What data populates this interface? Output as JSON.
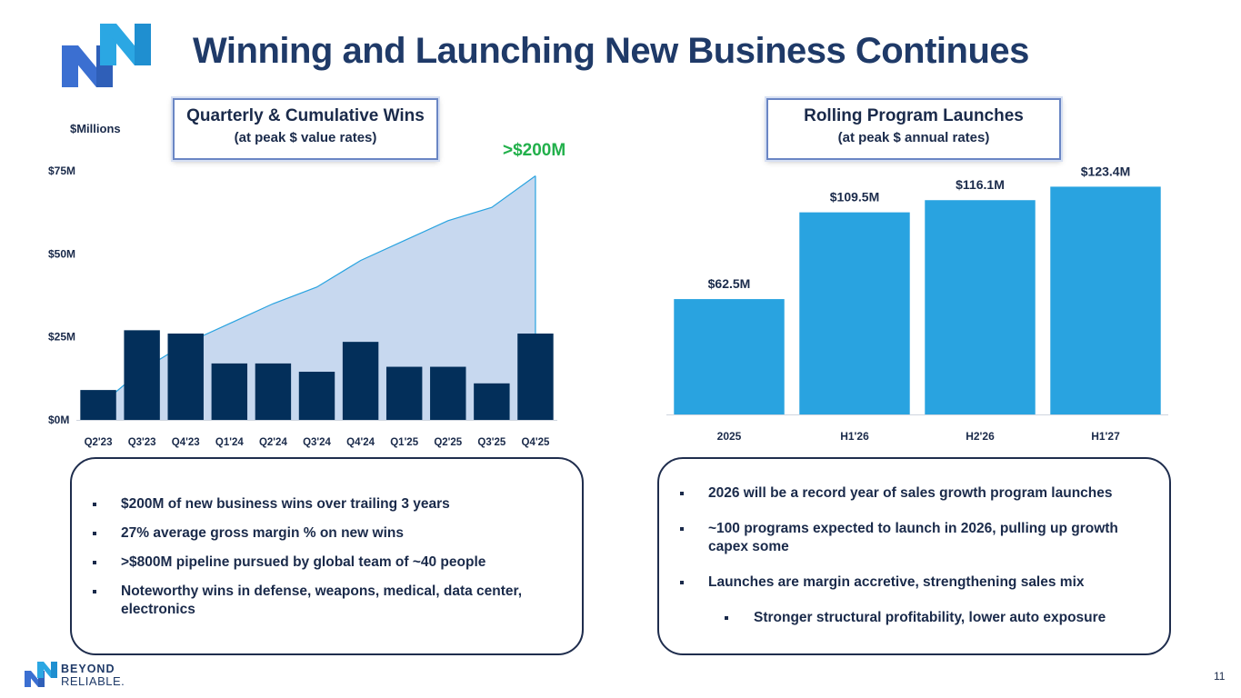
{
  "slide": {
    "title": "Winning and Launching New Business Continues",
    "page_number": "11"
  },
  "footer": {
    "brand_line1": "BEYOND",
    "brand_line2": "RELIABLE."
  },
  "left_chart": {
    "box_title": "Quarterly & Cumulative Wins",
    "box_subtitle": "(at peak $ value rates)",
    "units_label": "$Millions",
    "callout": ">$200M"
  },
  "right_chart": {
    "box_title": "Rolling Program Launches",
    "box_subtitle": "(at peak $ annual rates)"
  },
  "colors": {
    "bar_dark": "#032f5a",
    "area_fill": "#c7d8ef",
    "area_line": "#29a3e0",
    "bar_light": "#29a3e0",
    "callout_green": "#22b04b",
    "title_navy": "#1f3a68"
  },
  "chart_data": [
    {
      "type": "bar",
      "title": "Quarterly & Cumulative Wins",
      "ylabel": "$Millions",
      "categories": [
        "Q2'23",
        "Q3'23",
        "Q4'23",
        "Q1'24",
        "Q2'24",
        "Q3'24",
        "Q4'24",
        "Q1'25",
        "Q2'25",
        "Q3'25",
        "Q4'25"
      ],
      "series": [
        {
          "name": "Quarterly Wins",
          "kind": "bar",
          "values": [
            9,
            27,
            26,
            17,
            17,
            14.5,
            23.5,
            16,
            16,
            11,
            26
          ]
        },
        {
          "name": "Cumulative Wins (scaled)",
          "kind": "area",
          "values": [
            4,
            15,
            23,
            29,
            35,
            40,
            48,
            54,
            60,
            64,
            73.5
          ]
        }
      ],
      "y_ticks": [
        "$0M",
        "$25M",
        "$50M",
        "$75M"
      ],
      "ylim": [
        0,
        75
      ]
    },
    {
      "type": "bar",
      "title": "Rolling Program Launches",
      "categories": [
        "2025",
        "H1'26",
        "H2'26",
        "H1'27"
      ],
      "values": [
        62.5,
        109.5,
        116.1,
        123.4
      ],
      "data_labels": [
        "$62.5M",
        "$109.5M",
        "$116.1M",
        "$123.4M"
      ],
      "ylim": [
        0,
        130
      ]
    }
  ],
  "bullets_left": [
    {
      "text": "$200M of new business wins over trailing 3 years"
    },
    {
      "text": "27% average gross margin % on new wins"
    },
    {
      "text": ">$800M pipeline pursued by global team of ~40 people"
    },
    {
      "text": "Noteworthy wins in defense, weapons, medical, data center, electronics"
    }
  ],
  "bullets_right": [
    {
      "text": "2026 will be a record year of sales growth program launches"
    },
    {
      "text": "~100 programs expected to launch in 2026, pulling up growth capex some"
    },
    {
      "text": "Launches are margin accretive, strengthening sales mix"
    },
    {
      "text": "Stronger structural profitability, lower auto exposure"
    }
  ]
}
